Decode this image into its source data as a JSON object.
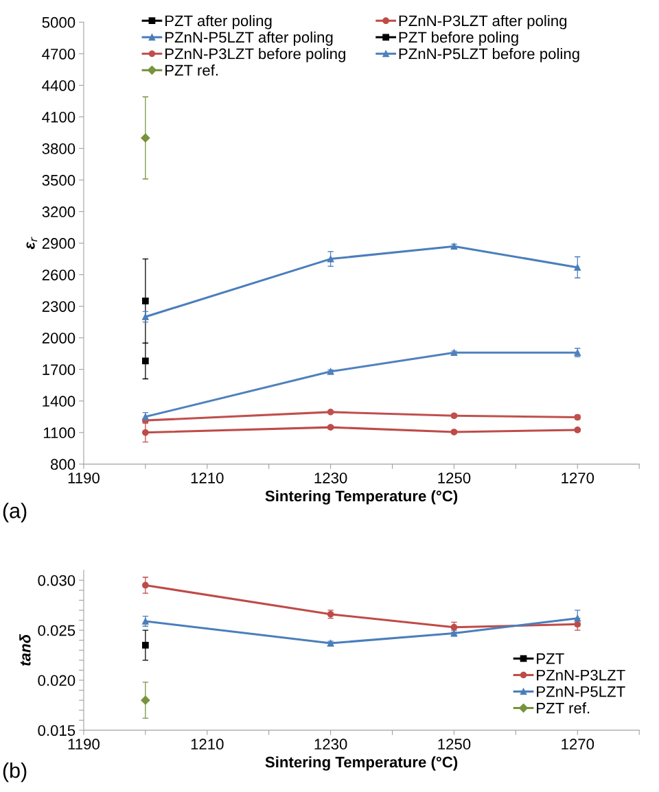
{
  "chart_data": [
    {
      "type": "line",
      "xlabel": "Sintering Temperature (°C)",
      "ylabel": "ε$_{r}$",
      "xlim": [
        1190,
        1280
      ],
      "xticks": [
        1190,
        {
          "value": 1200,
          "label": null
        },
        1210,
        {
          "value": 1220,
          "label": null
        },
        1230,
        {
          "value": 1240,
          "label": null
        },
        1250,
        {
          "value": 1260,
          "label": null
        },
        1270,
        {
          "value": 1280,
          "label": null
        }
      ],
      "ylim": [
        800,
        5000
      ],
      "yticks": [
        800,
        1100,
        1400,
        1700,
        2000,
        2300,
        2600,
        2900,
        3200,
        3500,
        3800,
        4100,
        4400,
        4700,
        5000
      ],
      "grid": false,
      "legend": "top",
      "annotations": [
        "(a)"
      ],
      "series": [
        {
          "name": "PZT after poling",
          "color": "#000000",
          "marker": "square",
          "x": [
            1200
          ],
          "values": [
            2350
          ],
          "errors": [
            400
          ]
        },
        {
          "name": "PZnN-P3LZT after poling",
          "color": "#be4b48",
          "marker": "circle",
          "x": [
            1200,
            1230,
            1250,
            1270
          ],
          "values": [
            1100,
            1150,
            1105,
            1125
          ],
          "errors": [
            90,
            15,
            15,
            15
          ]
        },
        {
          "name": "PZnN-P5LZT after poling",
          "color": "#4a7ebb",
          "marker": "triangle",
          "x": [
            1200,
            1230,
            1250,
            1270
          ],
          "values": [
            2200,
            2750,
            2870,
            2670
          ],
          "errors": [
            50,
            70,
            20,
            100
          ]
        },
        {
          "name": "PZT before poling",
          "color": "#000000",
          "marker": "square",
          "x": [
            1200
          ],
          "values": [
            1780
          ],
          "errors": [
            170
          ]
        },
        {
          "name": "PZnN-P3LZT before poling",
          "color": "#c0504d",
          "marker": "circle",
          "x": [
            1200,
            1230,
            1250,
            1270
          ],
          "values": [
            1215,
            1295,
            1260,
            1245
          ],
          "errors": [
            20,
            10,
            15,
            20
          ]
        },
        {
          "name": "PZnN-P5LZT before poling",
          "color": "#4f81bd",
          "marker": "triangle",
          "x": [
            1200,
            1230,
            1250,
            1270
          ],
          "values": [
            1250,
            1680,
            1860,
            1860
          ],
          "errors": [
            40,
            15,
            15,
            40
          ]
        },
        {
          "name": "PZT ref.",
          "color": "#77933c",
          "marker": "diamond",
          "x": [
            1200
          ],
          "values": [
            3900
          ],
          "errors": [
            390
          ]
        }
      ]
    },
    {
      "type": "line",
      "xlabel": "Sintering Temperature (°C)",
      "ylabel": "tanδ",
      "xlim": [
        1190,
        1280
      ],
      "xticks": [
        1190,
        {
          "value": 1200,
          "label": null
        },
        1210,
        {
          "value": 1220,
          "label": null
        },
        1230,
        {
          "value": 1240,
          "label": null
        },
        1250,
        {
          "value": 1260,
          "label": null
        },
        1270,
        {
          "value": 1280,
          "label": null
        }
      ],
      "ylim": [
        0.015,
        0.031
      ],
      "yticks": [
        "0.015",
        {
          "value": 0.016,
          "label": null
        },
        {
          "value": 0.017,
          "label": null
        },
        {
          "value": 0.018,
          "label": null
        },
        {
          "value": 0.019,
          "label": null
        },
        {
          "value": 0.02,
          "label": "0.020"
        },
        {
          "value": 0.021,
          "label": null
        },
        {
          "value": 0.022,
          "label": null
        },
        {
          "value": 0.023,
          "label": null
        },
        {
          "value": 0.024,
          "label": null
        },
        {
          "value": 0.025,
          "label": "0.025"
        },
        {
          "value": 0.026,
          "label": null
        },
        {
          "value": 0.027,
          "label": null
        },
        {
          "value": 0.028,
          "label": null
        },
        {
          "value": 0.029,
          "label": null
        },
        {
          "value": 0.03,
          "label": "0.030"
        }
      ],
      "grid": false,
      "legend": "bottom right",
      "annotations": [
        "(b)"
      ],
      "series": [
        {
          "name": "PZT",
          "color": "#000000",
          "marker": "square",
          "x": [
            1200
          ],
          "values": [
            0.0235
          ],
          "errors": [
            0.0015
          ]
        },
        {
          "name": "PZnN-P3LZT",
          "color": "#be4b48",
          "marker": "circle",
          "x": [
            1200,
            1230,
            1250,
            1270
          ],
          "values": [
            0.0295,
            0.0266,
            0.0253,
            0.0256
          ],
          "errors": [
            0.0008,
            0.0004,
            0.0005,
            0.0006
          ]
        },
        {
          "name": "PZnN-P5LZT",
          "color": "#4a7ebb",
          "marker": "triangle",
          "x": [
            1200,
            1230,
            1250,
            1270
          ],
          "values": [
            0.0259,
            0.0237,
            0.0247,
            0.0262
          ],
          "errors": [
            0.0005,
            0.0002,
            0.0003,
            0.0008
          ]
        },
        {
          "name": "PZT ref.",
          "color": "#77933c",
          "marker": "diamond",
          "x": [
            1200
          ],
          "values": [
            0.018
          ],
          "errors": [
            0.0018
          ]
        }
      ]
    }
  ]
}
